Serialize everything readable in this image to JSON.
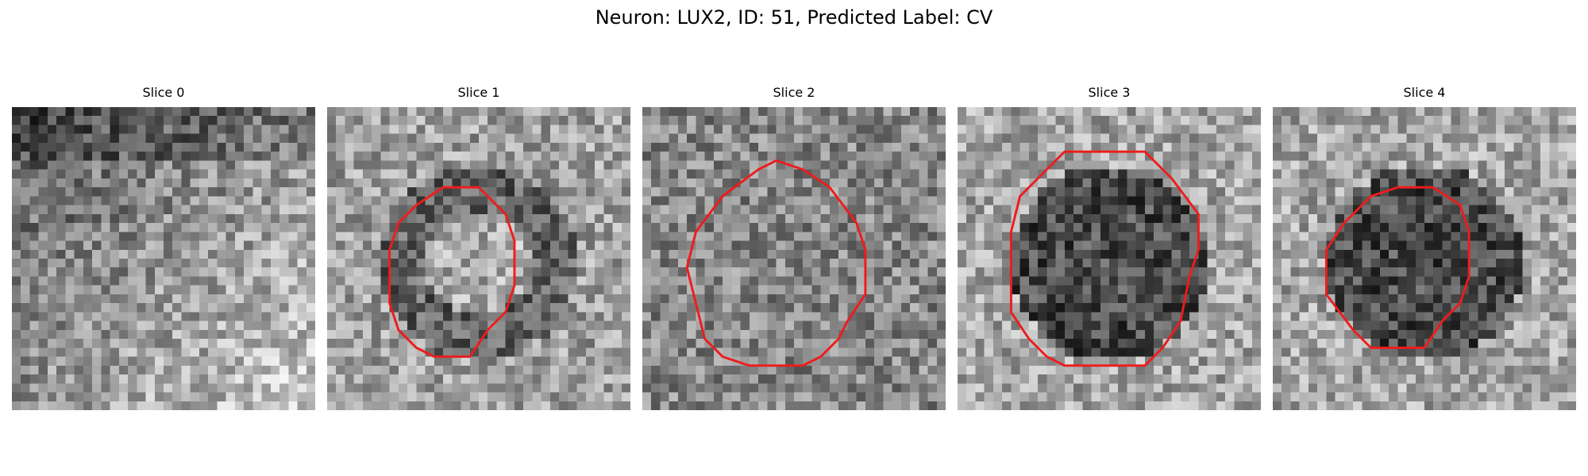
{
  "figure": {
    "title": "Neuron: LUX2, ID: 51, Predicted Label: CV",
    "contour_color": "#ee1c1c",
    "panels": [
      {
        "title": "Slice 0",
        "seed": 11,
        "bright_region": "lower-right",
        "has_contour": false
      },
      {
        "title": "Slice 1",
        "seed": 23,
        "bright_region": "center",
        "has_contour": true
      },
      {
        "title": "Slice 2",
        "seed": 37,
        "bright_region": "none",
        "has_contour": true
      },
      {
        "title": "Slice 3",
        "seed": 41,
        "bright_region": "dark-center",
        "has_contour": true
      },
      {
        "title": "Slice 4",
        "seed": 53,
        "bright_region": "dark-center",
        "has_contour": true
      }
    ]
  }
}
